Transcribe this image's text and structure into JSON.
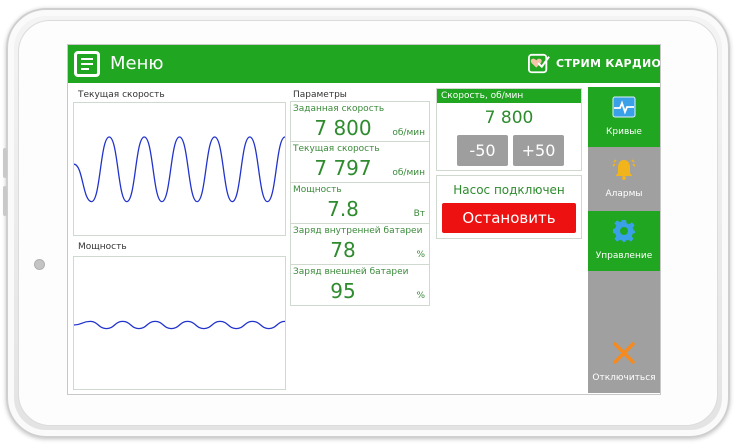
{
  "header": {
    "menu_title": "Меню",
    "brand": "СТРИМ КАРДИО",
    "menu_icon": "menu-list-icon",
    "brand_icon": "heart-check-icon"
  },
  "charts": {
    "speed_label": "Текущая скорость",
    "power_label": "Мощность"
  },
  "params": {
    "title": "Параметры",
    "items": [
      {
        "name": "Заданная скорость",
        "value": "7 800",
        "unit": "об/мин"
      },
      {
        "name": "Текущая скорость",
        "value": "7 797",
        "unit": "об/мин"
      },
      {
        "name": "Мощность",
        "value": "7.8",
        "unit": "Вт"
      },
      {
        "name": "Заряд внутренней батареи",
        "value": "78",
        "unit": "%"
      },
      {
        "name": "Заряд внешней батареи",
        "value": "95",
        "unit": "%"
      }
    ]
  },
  "speed_control": {
    "title": "Скорость, об/мин",
    "value": "7 800",
    "minus_label": "-50",
    "plus_label": "+50"
  },
  "pump": {
    "status": "Насос подключен",
    "stop_label": "Остановить"
  },
  "sidebar": {
    "curves": "Кривые",
    "alarms": "Алармы",
    "control": "Управление",
    "disconnect": "Отключиться"
  },
  "colors": {
    "accent_green": "#21a621",
    "stop_red": "#ee1111",
    "nav_gray": "#a0a0a0",
    "curve_blue": "#2233cc"
  },
  "chart_data": [
    {
      "type": "line",
      "title": "Текущая скорость",
      "series": [
        {
          "values": [
            0.2,
            -0.9,
            1.0,
            -0.9,
            1.0,
            -0.9,
            1.0,
            -0.9,
            1.0,
            -0.9,
            1.0,
            -0.9,
            1.0
          ]
        }
      ]
    },
    {
      "type": "line",
      "title": "Мощность",
      "series": [
        {
          "values": [
            0.0,
            0.6,
            -0.6,
            0.6,
            -0.6,
            0.6,
            -0.6,
            0.6,
            -0.6,
            0.6,
            -0.6,
            0.6,
            -0.6,
            0.6
          ]
        }
      ]
    }
  ]
}
